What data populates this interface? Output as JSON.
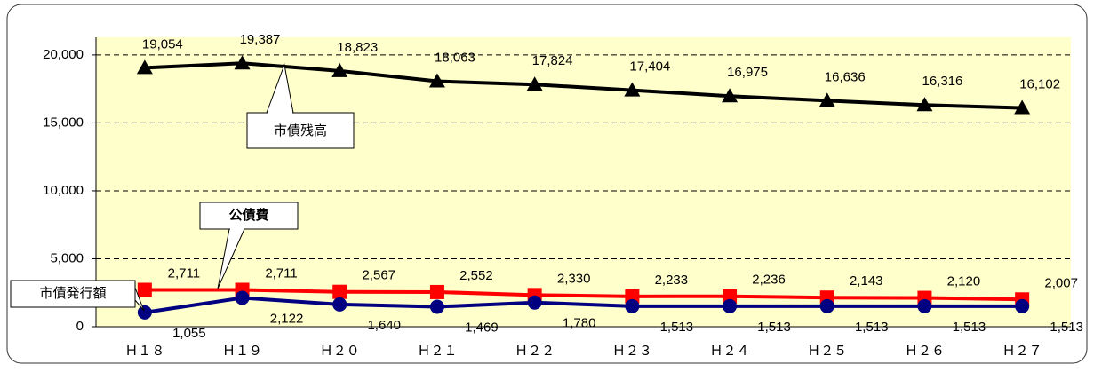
{
  "chart_data": {
    "type": "line",
    "categories": [
      "Ｈ１８",
      "Ｈ１９",
      "Ｈ２０",
      "Ｈ２１",
      "Ｈ２２",
      "Ｈ２３",
      "Ｈ２４",
      "Ｈ２５",
      "Ｈ２６",
      "Ｈ２７"
    ],
    "series": [
      {
        "name": "市債残高",
        "color": "#000000",
        "marker": "triangle",
        "values": [
          19054,
          19387,
          18823,
          18063,
          17824,
          17404,
          16975,
          16636,
          16316,
          16102
        ],
        "value_labels": [
          "19,054",
          "19,387",
          "18,823",
          "18,063",
          "17,824",
          "17,404",
          "16,975",
          "16,636",
          "16,316",
          "16,102"
        ]
      },
      {
        "name": "公債費",
        "color": "#ff0000",
        "marker": "square",
        "values": [
          2711,
          2711,
          2567,
          2552,
          2330,
          2233,
          2236,
          2143,
          2120,
          2007
        ],
        "value_labels": [
          "2,711",
          "2,711",
          "2,567",
          "2,552",
          "2,330",
          "2,233",
          "2,236",
          "2,143",
          "2,120",
          "2,007"
        ]
      },
      {
        "name": "市債発行額",
        "color": "#000080",
        "marker": "circle",
        "values": [
          1055,
          2122,
          1640,
          1469,
          1780,
          1513,
          1513,
          1513,
          1513,
          1513
        ],
        "value_labels": [
          "1,055",
          "2,122",
          "1,640",
          "1,469",
          "1,780",
          "1,513",
          "1,513",
          "1,513",
          "1,513",
          "1,513"
        ]
      }
    ],
    "ylim": [
      0,
      21300
    ],
    "yticks": [
      0,
      {
        "value": 5000,
        "label": "5,000"
      },
      {
        "value": 10000,
        "label": "10,000"
      },
      {
        "value": 15000,
        "label": "15,000"
      },
      {
        "value": 20000,
        "label": "20,000"
      }
    ],
    "grid": true
  }
}
